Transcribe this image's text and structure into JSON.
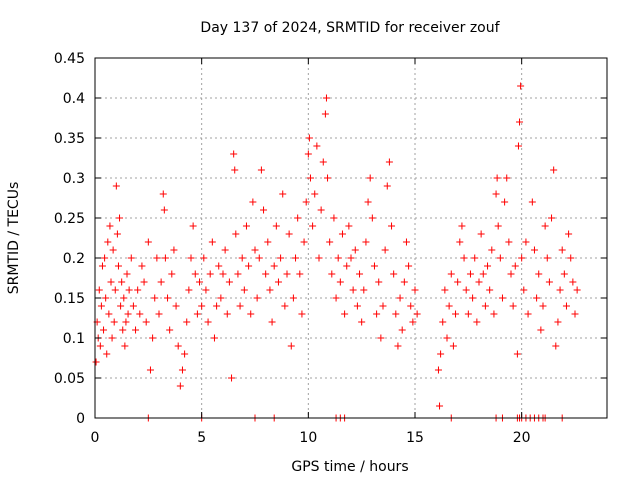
{
  "chart_data": {
    "type": "scatter",
    "title": "Day 137 of 2024, SRMTID for receiver zouf",
    "xlabel": "GPS time / hours",
    "ylabel": "SRMTID / TECUs",
    "xlim": [
      0,
      24
    ],
    "ylim": [
      0,
      0.45
    ],
    "grid": true,
    "marker": "+",
    "color": "#ff0000",
    "x_ticks": [
      0,
      5,
      10,
      15,
      20
    ],
    "x_tick_labels": [
      "0",
      "5",
      "10",
      "15",
      "20"
    ],
    "y_ticks": [
      0,
      0.05,
      0.1,
      0.15,
      0.2,
      0.25,
      0.3,
      0.35,
      0.4,
      0.45
    ],
    "y_tick_labels": [
      "0",
      "0.05",
      "0.1",
      "0.15",
      "0.2",
      "0.25",
      "0.3",
      "0.35",
      "0.4",
      "0.45"
    ],
    "series": [
      {
        "name": "SRMTID",
        "points": [
          [
            0.05,
            0.07
          ],
          [
            0.1,
            0.12
          ],
          [
            0.15,
            0.1
          ],
          [
            0.2,
            0.16
          ],
          [
            0.25,
            0.09
          ],
          [
            0.3,
            0.14
          ],
          [
            0.35,
            0.19
          ],
          [
            0.4,
            0.11
          ],
          [
            0.45,
            0.2
          ],
          [
            0.5,
            0.15
          ],
          [
            0.55,
            0.08
          ],
          [
            0.6,
            0.22
          ],
          [
            0.65,
            0.13
          ],
          [
            0.7,
            0.24
          ],
          [
            0.75,
            0.17
          ],
          [
            0.8,
            0.1
          ],
          [
            0.85,
            0.21
          ],
          [
            0.9,
            0.12
          ],
          [
            0.95,
            0.16
          ],
          [
            1.0,
            0.29
          ],
          [
            1.05,
            0.23
          ],
          [
            1.1,
            0.19
          ],
          [
            1.15,
            0.25
          ],
          [
            1.2,
            0.14
          ],
          [
            1.25,
            0.17
          ],
          [
            1.3,
            0.11
          ],
          [
            1.35,
            0.15
          ],
          [
            1.4,
            0.09
          ],
          [
            1.45,
            0.12
          ],
          [
            1.5,
            0.18
          ],
          [
            1.55,
            0.13
          ],
          [
            1.6,
            0.16
          ],
          [
            1.7,
            0.2
          ],
          [
            1.8,
            0.14
          ],
          [
            1.9,
            0.11
          ],
          [
            2.0,
            0.16
          ],
          [
            2.1,
            0.13
          ],
          [
            2.2,
            0.19
          ],
          [
            2.3,
            0.17
          ],
          [
            2.4,
            0.12
          ],
          [
            2.5,
            0.22
          ],
          [
            2.6,
            0.06
          ],
          [
            2.7,
            0.1
          ],
          [
            2.8,
            0.15
          ],
          [
            2.9,
            0.2
          ],
          [
            3.0,
            0.13
          ],
          [
            3.1,
            0.17
          ],
          [
            3.2,
            0.28
          ],
          [
            3.25,
            0.26
          ],
          [
            3.3,
            0.2
          ],
          [
            3.4,
            0.15
          ],
          [
            3.5,
            0.11
          ],
          [
            3.6,
            0.18
          ],
          [
            3.7,
            0.21
          ],
          [
            3.8,
            0.14
          ],
          [
            3.9,
            0.09
          ],
          [
            4.0,
            0.04
          ],
          [
            4.1,
            0.06
          ],
          [
            4.2,
            0.08
          ],
          [
            4.3,
            0.12
          ],
          [
            4.4,
            0.16
          ],
          [
            4.5,
            0.2
          ],
          [
            4.6,
            0.24
          ],
          [
            4.7,
            0.18
          ],
          [
            4.8,
            0.13
          ],
          [
            4.9,
            0.17
          ],
          [
            5.0,
            0.14
          ],
          [
            5.1,
            0.2
          ],
          [
            5.2,
            0.16
          ],
          [
            5.3,
            0.12
          ],
          [
            5.4,
            0.18
          ],
          [
            5.5,
            0.22
          ],
          [
            5.6,
            0.1
          ],
          [
            5.7,
            0.14
          ],
          [
            5.8,
            0.19
          ],
          [
            5.9,
            0.15
          ],
          [
            6.0,
            0.18
          ],
          [
            6.1,
            0.21
          ],
          [
            6.2,
            0.13
          ],
          [
            6.3,
            0.17
          ],
          [
            6.4,
            0.05
          ],
          [
            6.5,
            0.33
          ],
          [
            6.55,
            0.31
          ],
          [
            6.6,
            0.23
          ],
          [
            6.7,
            0.18
          ],
          [
            6.8,
            0.14
          ],
          [
            6.9,
            0.2
          ],
          [
            7.0,
            0.16
          ],
          [
            7.1,
            0.24
          ],
          [
            7.2,
            0.19
          ],
          [
            7.3,
            0.13
          ],
          [
            7.4,
            0.27
          ],
          [
            7.5,
            0.21
          ],
          [
            7.6,
            0.15
          ],
          [
            7.7,
            0.2
          ],
          [
            7.8,
            0.31
          ],
          [
            7.9,
            0.26
          ],
          [
            8.0,
            0.18
          ],
          [
            8.1,
            0.22
          ],
          [
            8.2,
            0.16
          ],
          [
            8.3,
            0.12
          ],
          [
            8.4,
            0.19
          ],
          [
            8.5,
            0.24
          ],
          [
            8.6,
            0.17
          ],
          [
            8.7,
            0.2
          ],
          [
            8.8,
            0.28
          ],
          [
            8.9,
            0.14
          ],
          [
            9.0,
            0.18
          ],
          [
            9.1,
            0.23
          ],
          [
            9.2,
            0.09
          ],
          [
            9.3,
            0.15
          ],
          [
            9.4,
            0.2
          ],
          [
            9.5,
            0.25
          ],
          [
            9.6,
            0.18
          ],
          [
            9.7,
            0.13
          ],
          [
            9.8,
            0.22
          ],
          [
            9.9,
            0.27
          ],
          [
            10.0,
            0.33
          ],
          [
            10.05,
            0.35
          ],
          [
            10.1,
            0.3
          ],
          [
            10.2,
            0.24
          ],
          [
            10.3,
            0.28
          ],
          [
            10.4,
            0.34
          ],
          [
            10.5,
            0.2
          ],
          [
            10.6,
            0.26
          ],
          [
            10.7,
            0.32
          ],
          [
            10.8,
            0.38
          ],
          [
            10.85,
            0.4
          ],
          [
            10.9,
            0.3
          ],
          [
            11.0,
            0.22
          ],
          [
            11.1,
            0.18
          ],
          [
            11.2,
            0.25
          ],
          [
            11.3,
            0.15
          ],
          [
            11.4,
            0.2
          ],
          [
            11.5,
            0.17
          ],
          [
            11.6,
            0.23
          ],
          [
            11.7,
            0.13
          ],
          [
            11.8,
            0.19
          ],
          [
            11.9,
            0.24
          ],
          [
            12.0,
            0.2
          ],
          [
            12.1,
            0.16
          ],
          [
            12.2,
            0.21
          ],
          [
            12.3,
            0.14
          ],
          [
            12.4,
            0.18
          ],
          [
            12.5,
            0.12
          ],
          [
            12.6,
            0.16
          ],
          [
            12.7,
            0.22
          ],
          [
            12.8,
            0.27
          ],
          [
            12.9,
            0.3
          ],
          [
            13.0,
            0.25
          ],
          [
            13.1,
            0.19
          ],
          [
            13.2,
            0.13
          ],
          [
            13.3,
            0.17
          ],
          [
            13.4,
            0.1
          ],
          [
            13.5,
            0.14
          ],
          [
            13.6,
            0.21
          ],
          [
            13.7,
            0.29
          ],
          [
            13.8,
            0.32
          ],
          [
            13.9,
            0.24
          ],
          [
            14.0,
            0.18
          ],
          [
            14.1,
            0.13
          ],
          [
            14.2,
            0.09
          ],
          [
            14.3,
            0.15
          ],
          [
            14.4,
            0.11
          ],
          [
            14.5,
            0.17
          ],
          [
            14.6,
            0.22
          ],
          [
            14.7,
            0.19
          ],
          [
            14.8,
            0.14
          ],
          [
            14.9,
            0.12
          ],
          [
            15.0,
            0.16
          ],
          [
            15.1,
            0.13
          ],
          [
            16.1,
            0.06
          ],
          [
            16.15,
            0.015
          ],
          [
            16.2,
            0.08
          ],
          [
            16.3,
            0.12
          ],
          [
            16.4,
            0.16
          ],
          [
            16.5,
            0.1
          ],
          [
            16.6,
            0.14
          ],
          [
            16.7,
            0.18
          ],
          [
            16.8,
            0.09
          ],
          [
            16.9,
            0.13
          ],
          [
            17.0,
            0.17
          ],
          [
            17.1,
            0.22
          ],
          [
            17.2,
            0.24
          ],
          [
            17.3,
            0.2
          ],
          [
            17.4,
            0.16
          ],
          [
            17.5,
            0.13
          ],
          [
            17.6,
            0.18
          ],
          [
            17.7,
            0.15
          ],
          [
            17.8,
            0.2
          ],
          [
            17.9,
            0.12
          ],
          [
            18.0,
            0.17
          ],
          [
            18.1,
            0.23
          ],
          [
            18.2,
            0.18
          ],
          [
            18.3,
            0.14
          ],
          [
            18.4,
            0.19
          ],
          [
            18.5,
            0.16
          ],
          [
            18.6,
            0.21
          ],
          [
            18.7,
            0.13
          ],
          [
            18.8,
            0.28
          ],
          [
            18.85,
            0.3
          ],
          [
            18.9,
            0.24
          ],
          [
            19.0,
            0.2
          ],
          [
            19.1,
            0.15
          ],
          [
            19.2,
            0.27
          ],
          [
            19.3,
            0.3
          ],
          [
            19.4,
            0.22
          ],
          [
            19.5,
            0.18
          ],
          [
            19.6,
            0.14
          ],
          [
            19.7,
            0.19
          ],
          [
            19.8,
            0.08
          ],
          [
            19.85,
            0.34
          ],
          [
            19.9,
            0.37
          ],
          [
            19.95,
            0.415
          ],
          [
            20.0,
            0.2
          ],
          [
            20.1,
            0.16
          ],
          [
            20.2,
            0.22
          ],
          [
            20.3,
            0.13
          ],
          [
            20.5,
            0.27
          ],
          [
            20.6,
            0.21
          ],
          [
            20.7,
            0.15
          ],
          [
            20.8,
            0.18
          ],
          [
            20.9,
            0.11
          ],
          [
            21.0,
            0.14
          ],
          [
            21.1,
            0.24
          ],
          [
            21.2,
            0.2
          ],
          [
            21.3,
            0.17
          ],
          [
            21.4,
            0.25
          ],
          [
            21.5,
            0.31
          ],
          [
            21.6,
            0.09
          ],
          [
            21.7,
            0.12
          ],
          [
            21.8,
            0.16
          ],
          [
            21.9,
            0.21
          ],
          [
            22.0,
            0.18
          ],
          [
            22.1,
            0.14
          ],
          [
            22.2,
            0.23
          ],
          [
            22.3,
            0.2
          ],
          [
            22.4,
            0.17
          ],
          [
            22.5,
            0.13
          ],
          [
            22.6,
            0.16
          ],
          [
            2.5,
            0
          ],
          [
            5.0,
            0
          ],
          [
            7.5,
            0
          ],
          [
            8.4,
            0
          ],
          [
            11.3,
            0
          ],
          [
            11.5,
            0
          ],
          [
            11.7,
            0
          ],
          [
            16.7,
            0
          ],
          [
            18.8,
            0
          ],
          [
            19.1,
            0
          ],
          [
            19.8,
            0
          ],
          [
            19.9,
            0
          ],
          [
            20.0,
            0
          ],
          [
            20.2,
            0
          ],
          [
            20.4,
            0
          ],
          [
            20.6,
            0
          ],
          [
            20.8,
            0
          ],
          [
            21.0,
            0
          ],
          [
            21.1,
            0
          ],
          [
            21.9,
            0
          ]
        ]
      }
    ]
  }
}
